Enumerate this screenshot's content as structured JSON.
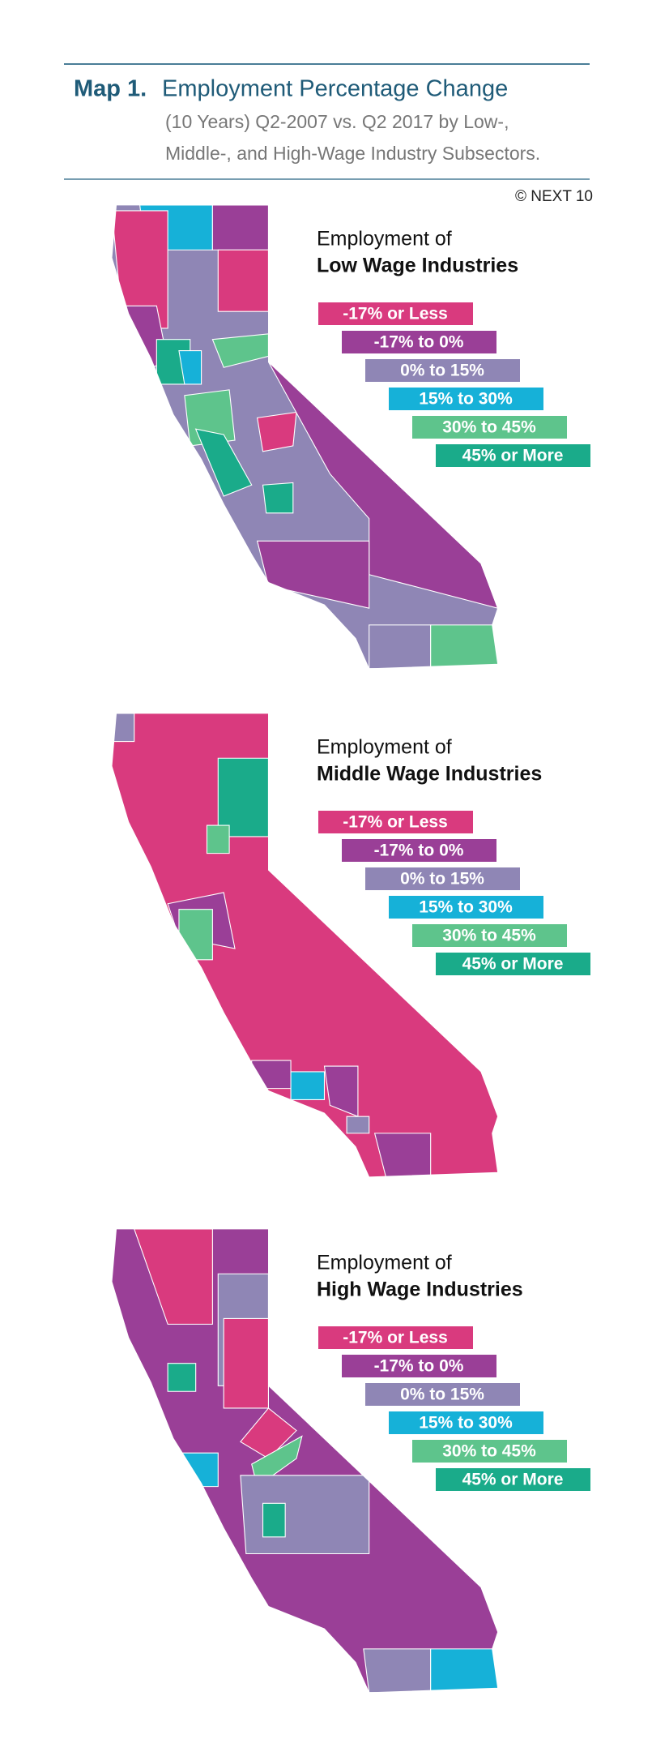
{
  "header": {
    "label": "Map 1.",
    "title": "Employment Percentage Change",
    "subtitle_lines": [
      "(10 Years) Q2-2007 vs. Q2 2017 by Low-,",
      "Middle-, and High-Wage Industry Subsectors."
    ]
  },
  "credit": "© NEXT 10",
  "legend": [
    {
      "label": "-17% or Less",
      "color": "#d93a7e"
    },
    {
      "label": "-17% to 0%",
      "color": "#9a3f97"
    },
    {
      "label": "0% to 15%",
      "color": "#8f86b5"
    },
    {
      "label": "15% to 30%",
      "color": "#16b1d8"
    },
    {
      "label": "30% to 45%",
      "color": "#5ec48c"
    },
    {
      "label": "45% or More",
      "color": "#1aab8a"
    }
  ],
  "maps": [
    {
      "heading": "Employment of",
      "subheading": "Low Wage Industries"
    },
    {
      "heading": "Employment of",
      "subheading": "Middle Wage Industries"
    },
    {
      "heading": "Employment of",
      "subheading": "High Wage Industries"
    }
  ]
}
